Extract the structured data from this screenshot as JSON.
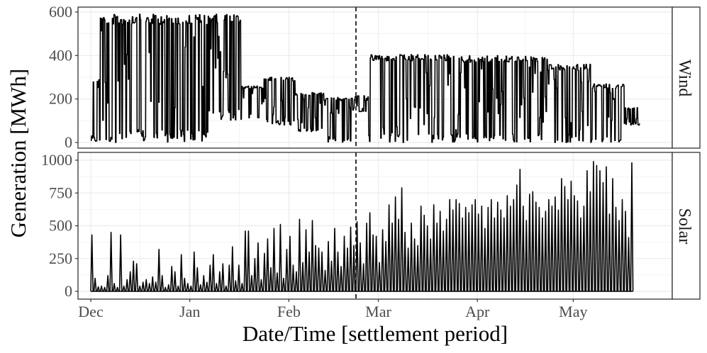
{
  "chart_data": [
    {
      "type": "line",
      "panel": "Wind",
      "ylim": [
        0,
        600
      ],
      "yticks": [
        0,
        200,
        400,
        600
      ],
      "yticklabels": [
        "0",
        "200",
        "400",
        "600"
      ],
      "grid": true,
      "vline_x": "Feb 22",
      "series": [
        {
          "segments": [
            {
              "x_start": "Dec 1",
              "x_end": "Dec 4",
              "min": 0,
              "max": 300
            },
            {
              "x_start": "Dec 4",
              "x_end": "Jan 7",
              "min": 0,
              "max": 590
            },
            {
              "x_start": "Jan 7",
              "x_end": "Jan 17",
              "min": 100,
              "max": 590
            },
            {
              "x_start": "Jan 17",
              "x_end": "Jan 24",
              "min": 100,
              "max": 260
            },
            {
              "x_start": "Jan 24",
              "x_end": "Feb 3",
              "min": 80,
              "max": 300
            },
            {
              "x_start": "Feb 3",
              "x_end": "Feb 12",
              "min": 50,
              "max": 230
            },
            {
              "x_start": "Feb 12",
              "x_end": "Feb 21",
              "min": 0,
              "max": 210
            },
            {
              "x_start": "Feb 21",
              "x_end": "Feb 26",
              "min": 140,
              "max": 215
            },
            {
              "x_start": "Feb 26",
              "x_end": "Mar 26",
              "min": 0,
              "max": 405
            },
            {
              "x_start": "Mar 26",
              "x_end": "Apr 23",
              "min": 0,
              "max": 400
            },
            {
              "x_start": "Apr 23",
              "x_end": "May 7",
              "min": 0,
              "max": 360
            },
            {
              "x_start": "May 7",
              "x_end": "May 17",
              "min": 0,
              "max": 270
            },
            {
              "x_start": "May 17",
              "x_end": "May 22",
              "min": 80,
              "max": 160
            }
          ]
        }
      ]
    },
    {
      "type": "line",
      "panel": "Solar",
      "ylim": [
        0,
        1000
      ],
      "yticks": [
        0,
        250,
        500,
        750,
        1000
      ],
      "yticklabels": [
        "0",
        "250",
        "500",
        "750",
        "1000"
      ],
      "grid": true,
      "vline_x": "Feb 22",
      "series": [
        {
          "daily_peaks": [
            {
              "x": "Dec 1",
              "y": 430
            },
            {
              "x": "Dec 2",
              "y": 100
            },
            {
              "x": "Dec 3",
              "y": 35
            },
            {
              "x": "Dec 4",
              "y": 40
            },
            {
              "x": "Dec 5",
              "y": 30
            },
            {
              "x": "Dec 6",
              "y": 120
            },
            {
              "x": "Dec 7",
              "y": 450
            },
            {
              "x": "Dec 8",
              "y": 60
            },
            {
              "x": "Dec 9",
              "y": 30
            },
            {
              "x": "Dec 10",
              "y": 430
            },
            {
              "x": "Dec 11",
              "y": 40
            },
            {
              "x": "Dec 12",
              "y": 90
            },
            {
              "x": "Dec 13",
              "y": 150
            },
            {
              "x": "Dec 14",
              "y": 230
            },
            {
              "x": "Dec 15",
              "y": 210
            },
            {
              "x": "Dec 16",
              "y": 40
            },
            {
              "x": "Dec 17",
              "y": 70
            },
            {
              "x": "Dec 18",
              "y": 90
            },
            {
              "x": "Dec 19",
              "y": 60
            },
            {
              "x": "Dec 20",
              "y": 110
            },
            {
              "x": "Dec 21",
              "y": 70
            },
            {
              "x": "Dec 22",
              "y": 320
            },
            {
              "x": "Dec 23",
              "y": 120
            },
            {
              "x": "Dec 24",
              "y": 30
            },
            {
              "x": "Dec 25",
              "y": 50
            },
            {
              "x": "Dec 26",
              "y": 190
            },
            {
              "x": "Dec 27",
              "y": 150
            },
            {
              "x": "Dec 28",
              "y": 40
            },
            {
              "x": "Dec 29",
              "y": 280
            },
            {
              "x": "Dec 30",
              "y": 100
            },
            {
              "x": "Dec 31",
              "y": 60
            },
            {
              "x": "Jan 1",
              "y": 40
            },
            {
              "x": "Jan 2",
              "y": 300
            },
            {
              "x": "Jan 3",
              "y": 180
            },
            {
              "x": "Jan 4",
              "y": 50
            },
            {
              "x": "Jan 5",
              "y": 120
            },
            {
              "x": "Jan 6",
              "y": 70
            },
            {
              "x": "Jan 7",
              "y": 200
            },
            {
              "x": "Jan 8",
              "y": 280
            },
            {
              "x": "Jan 9",
              "y": 60
            },
            {
              "x": "Jan 10",
              "y": 150
            },
            {
              "x": "Jan 11",
              "y": 210
            },
            {
              "x": "Jan 12",
              "y": 40
            },
            {
              "x": "Jan 13",
              "y": 200
            },
            {
              "x": "Jan 14",
              "y": 340
            },
            {
              "x": "Jan 15",
              "y": 80
            },
            {
              "x": "Jan 16",
              "y": 200
            },
            {
              "x": "Jan 17",
              "y": 60
            },
            {
              "x": "Jan 18",
              "y": 460
            },
            {
              "x": "Jan 19",
              "y": 460
            },
            {
              "x": "Jan 20",
              "y": 120
            },
            {
              "x": "Jan 21",
              "y": 250
            },
            {
              "x": "Jan 22",
              "y": 370
            },
            {
              "x": "Jan 23",
              "y": 90
            },
            {
              "x": "Jan 24",
              "y": 290
            },
            {
              "x": "Jan 25",
              "y": 400
            },
            {
              "x": "Jan 26",
              "y": 180
            },
            {
              "x": "Jan 27",
              "y": 480
            },
            {
              "x": "Jan 28",
              "y": 140
            },
            {
              "x": "Jan 29",
              "y": 510
            },
            {
              "x": "Jan 30",
              "y": 100
            },
            {
              "x": "Jan 31",
              "y": 320
            },
            {
              "x": "Feb 1",
              "y": 420
            },
            {
              "x": "Feb 2",
              "y": 200
            },
            {
              "x": "Feb 3",
              "y": 150
            },
            {
              "x": "Feb 4",
              "y": 550
            },
            {
              "x": "Feb 5",
              "y": 220
            },
            {
              "x": "Feb 6",
              "y": 470
            },
            {
              "x": "Feb 7",
              "y": 300
            },
            {
              "x": "Feb 8",
              "y": 540
            },
            {
              "x": "Feb 9",
              "y": 350
            },
            {
              "x": "Feb 10",
              "y": 330
            },
            {
              "x": "Feb 11",
              "y": 300
            },
            {
              "x": "Feb 12",
              "y": 160
            },
            {
              "x": "Feb 13",
              "y": 380
            },
            {
              "x": "Feb 14",
              "y": 230
            },
            {
              "x": "Feb 15",
              "y": 480
            },
            {
              "x": "Feb 16",
              "y": 300
            },
            {
              "x": "Feb 17",
              "y": 190
            },
            {
              "x": "Feb 18",
              "y": 420
            },
            {
              "x": "Feb 19",
              "y": 330
            },
            {
              "x": "Feb 20",
              "y": 490
            },
            {
              "x": "Feb 21",
              "y": 350
            },
            {
              "x": "Feb 22",
              "y": 530
            },
            {
              "x": "Feb 23",
              "y": 370
            },
            {
              "x": "Feb 24",
              "y": 210
            },
            {
              "x": "Feb 25",
              "y": 520
            },
            {
              "x": "Feb 26",
              "y": 600
            },
            {
              "x": "Feb 27",
              "y": 430
            },
            {
              "x": "Feb 28",
              "y": 420
            },
            {
              "x": "Mar 1",
              "y": 220
            },
            {
              "x": "Mar 2",
              "y": 470
            },
            {
              "x": "Mar 3",
              "y": 380
            },
            {
              "x": "Mar 4",
              "y": 660
            },
            {
              "x": "Mar 5",
              "y": 520
            },
            {
              "x": "Mar 6",
              "y": 720
            },
            {
              "x": "Mar 7",
              "y": 550
            },
            {
              "x": "Mar 8",
              "y": 790
            },
            {
              "x": "Mar 9",
              "y": 450
            },
            {
              "x": "Mar 10",
              "y": 330
            },
            {
              "x": "Mar 11",
              "y": 520
            },
            {
              "x": "Mar 12",
              "y": 400
            },
            {
              "x": "Mar 13",
              "y": 350
            },
            {
              "x": "Mar 14",
              "y": 650
            },
            {
              "x": "Mar 15",
              "y": 580
            },
            {
              "x": "Mar 16",
              "y": 500
            },
            {
              "x": "Mar 17",
              "y": 400
            },
            {
              "x": "Mar 18",
              "y": 660
            },
            {
              "x": "Mar 19",
              "y": 520
            },
            {
              "x": "Mar 20",
              "y": 610
            },
            {
              "x": "Mar 21",
              "y": 460
            },
            {
              "x": "Mar 22",
              "y": 550
            },
            {
              "x": "Mar 23",
              "y": 700
            },
            {
              "x": "Mar 24",
              "y": 620
            },
            {
              "x": "Mar 25",
              "y": 700
            },
            {
              "x": "Mar 26",
              "y": 670
            },
            {
              "x": "Mar 27",
              "y": 560
            },
            {
              "x": "Mar 28",
              "y": 640
            },
            {
              "x": "Mar 29",
              "y": 600
            },
            {
              "x": "Mar 30",
              "y": 660
            },
            {
              "x": "Mar 31",
              "y": 700
            },
            {
              "x": "Apr 1",
              "y": 590
            },
            {
              "x": "Apr 2",
              "y": 650
            },
            {
              "x": "Apr 3",
              "y": 480
            },
            {
              "x": "Apr 4",
              "y": 640
            },
            {
              "x": "Apr 5",
              "y": 700
            },
            {
              "x": "Apr 6",
              "y": 560
            },
            {
              "x": "Apr 7",
              "y": 680
            },
            {
              "x": "Apr 8",
              "y": 620
            },
            {
              "x": "Apr 9",
              "y": 560
            },
            {
              "x": "Apr 10",
              "y": 730
            },
            {
              "x": "Apr 11",
              "y": 650
            },
            {
              "x": "Apr 12",
              "y": 700
            },
            {
              "x": "Apr 13",
              "y": 810
            },
            {
              "x": "Apr 14",
              "y": 930
            },
            {
              "x": "Apr 15",
              "y": 650
            },
            {
              "x": "Apr 16",
              "y": 540
            },
            {
              "x": "Apr 17",
              "y": 740
            },
            {
              "x": "Apr 18",
              "y": 760
            },
            {
              "x": "Apr 19",
              "y": 680
            },
            {
              "x": "Apr 20",
              "y": 640
            },
            {
              "x": "Apr 21",
              "y": 560
            },
            {
              "x": "Apr 22",
              "y": 610
            },
            {
              "x": "Apr 23",
              "y": 700
            },
            {
              "x": "Apr 24",
              "y": 650
            },
            {
              "x": "Apr 25",
              "y": 720
            },
            {
              "x": "Apr 26",
              "y": 620
            },
            {
              "x": "Apr 27",
              "y": 860
            },
            {
              "x": "Apr 28",
              "y": 800
            },
            {
              "x": "Apr 29",
              "y": 700
            },
            {
              "x": "Apr 30",
              "y": 840
            },
            {
              "x": "May 1",
              "y": 730
            },
            {
              "x": "May 2",
              "y": 690
            },
            {
              "x": "May 3",
              "y": 560
            },
            {
              "x": "May 4",
              "y": 650
            },
            {
              "x": "May 5",
              "y": 920
            },
            {
              "x": "May 6",
              "y": 760
            },
            {
              "x": "May 7",
              "y": 990
            },
            {
              "x": "May 8",
              "y": 960
            },
            {
              "x": "May 9",
              "y": 920
            },
            {
              "x": "May 10",
              "y": 830
            },
            {
              "x": "May 11",
              "y": 950
            },
            {
              "x": "May 12",
              "y": 590
            },
            {
              "x": "May 13",
              "y": 860
            },
            {
              "x": "May 14",
              "y": 640
            },
            {
              "x": "May 15",
              "y": 540
            },
            {
              "x": "May 16",
              "y": 700
            },
            {
              "x": "May 17",
              "y": 610
            },
            {
              "x": "May 18",
              "y": 410
            },
            {
              "x": "May 19",
              "y": 980
            }
          ]
        }
      ]
    }
  ],
  "x_axis": {
    "label": "Date/Time [settlement period]",
    "tick_labels": [
      "Dec",
      "Jan",
      "Feb",
      "Mar",
      "Apr",
      "May"
    ],
    "tick_dates": [
      "Dec 1",
      "Jan 1",
      "Feb 1",
      "Mar 1",
      "Apr 1",
      "May 1"
    ],
    "range": [
      "Nov 27",
      "Jun 1"
    ]
  },
  "y_axis": {
    "label": "Generation [MWh]"
  },
  "facet_labels": [
    "Wind",
    "Solar"
  ],
  "colors": {
    "line": "#000000",
    "grid": "#ebebeb",
    "panel_border": "#333333",
    "strip_fill": "#ffffff"
  }
}
